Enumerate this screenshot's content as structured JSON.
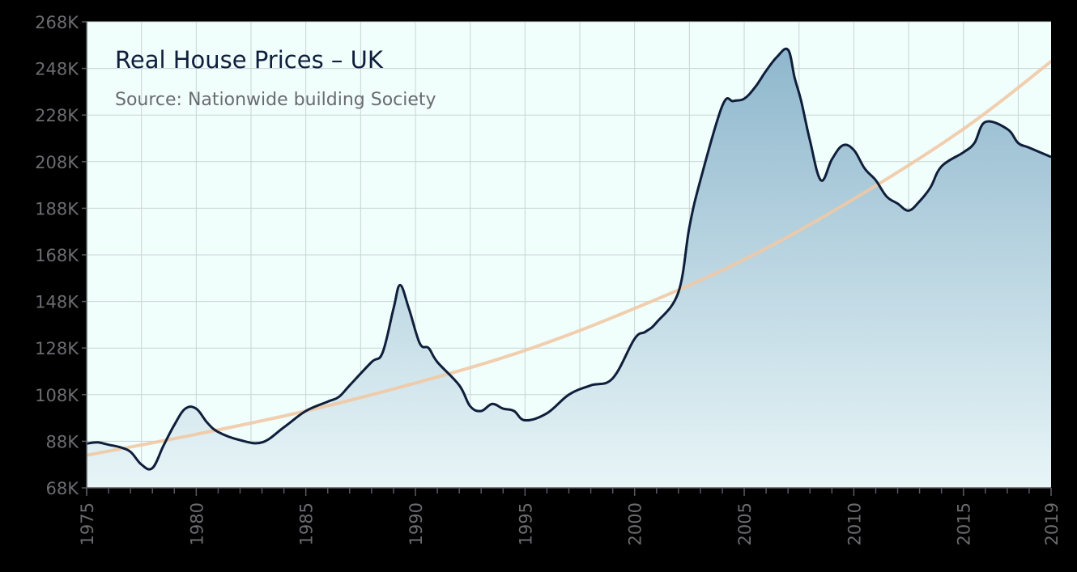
{
  "chart_data": {
    "type": "area",
    "title": "Real House Prices – UK",
    "subtitle": "Source: Nationwide building Society",
    "xlabel": "",
    "ylabel": "",
    "xlim": [
      1975,
      2019
    ],
    "ylim": [
      68000,
      268000
    ],
    "x_ticks": [
      "1975",
      "1980",
      "1985",
      "1990",
      "1995",
      "2000",
      "2005",
      "2010",
      "2015",
      "2019"
    ],
    "y_ticks": [
      "68K",
      "88K",
      "108K",
      "128K",
      "148K",
      "168K",
      "188K",
      "208K",
      "228K",
      "248K",
      "268K"
    ],
    "grid": true,
    "series": [
      {
        "kind": "area-line",
        "x": [
          1975,
          1975.5,
          1976,
          1976.5,
          1977,
          1977.5,
          1978,
          1978.5,
          1979,
          1979.5,
          1980,
          1980.5,
          1981,
          1982,
          1983,
          1984,
          1985,
          1986,
          1986.5,
          1987,
          1988,
          1988.5,
          1989,
          1989.3,
          1989.7,
          1990.2,
          1990.6,
          1991,
          1992,
          1992.5,
          1993,
          1993.5,
          1994,
          1994.5,
          1995,
          1996,
          1997,
          1998,
          1999,
          2000,
          2000.5,
          2001,
          2002,
          2002.5,
          2003,
          2004,
          2004.5,
          2005,
          2005.5,
          2006,
          2006.5,
          2007,
          2007.3,
          2007.6,
          2008,
          2008.5,
          2009,
          2009.5,
          2010,
          2010.5,
          2011,
          2011.5,
          2012,
          2012.5,
          2013,
          2013.5,
          2014,
          2015,
          2015.5,
          2016,
          2017,
          2017.5,
          2018,
          2019
        ],
        "y": [
          87000,
          87500,
          86500,
          85500,
          83500,
          78000,
          76500,
          86000,
          95000,
          102000,
          102000,
          96000,
          92000,
          88500,
          87500,
          94000,
          101000,
          105000,
          107000,
          112000,
          122000,
          126000,
          145000,
          155000,
          145000,
          130000,
          128000,
          122000,
          112000,
          103000,
          101000,
          104000,
          102000,
          101000,
          97000,
          100000,
          108000,
          112000,
          115000,
          132000,
          135000,
          139000,
          152000,
          180000,
          200000,
          232000,
          234000,
          235000,
          240000,
          247000,
          253000,
          256000,
          244000,
          234000,
          217000,
          200000,
          209000,
          215000,
          213000,
          205000,
          200000,
          193000,
          190000,
          187000,
          191000,
          197000,
          206000,
          212000,
          216000,
          225000,
          222000,
          216000,
          214000,
          210000
        ]
      },
      {
        "kind": "trend",
        "x": [
          1975,
          1980,
          1985,
          1990,
          1995,
          2000,
          2005,
          2010,
          2015,
          2019
        ],
        "y": [
          82000,
          91000,
          101000,
          113000,
          127000,
          145000,
          166000,
          192000,
          222000,
          251000
        ]
      }
    ],
    "colors": {
      "plot_background": "#f0fefc",
      "line": "#0f1e3a",
      "area_top": "#8fb7cd",
      "area_bottom": "#e8f5f7",
      "trend": "#efc9a5",
      "grid": "#c9d4d4",
      "axis_text": "#6b6b70"
    }
  }
}
